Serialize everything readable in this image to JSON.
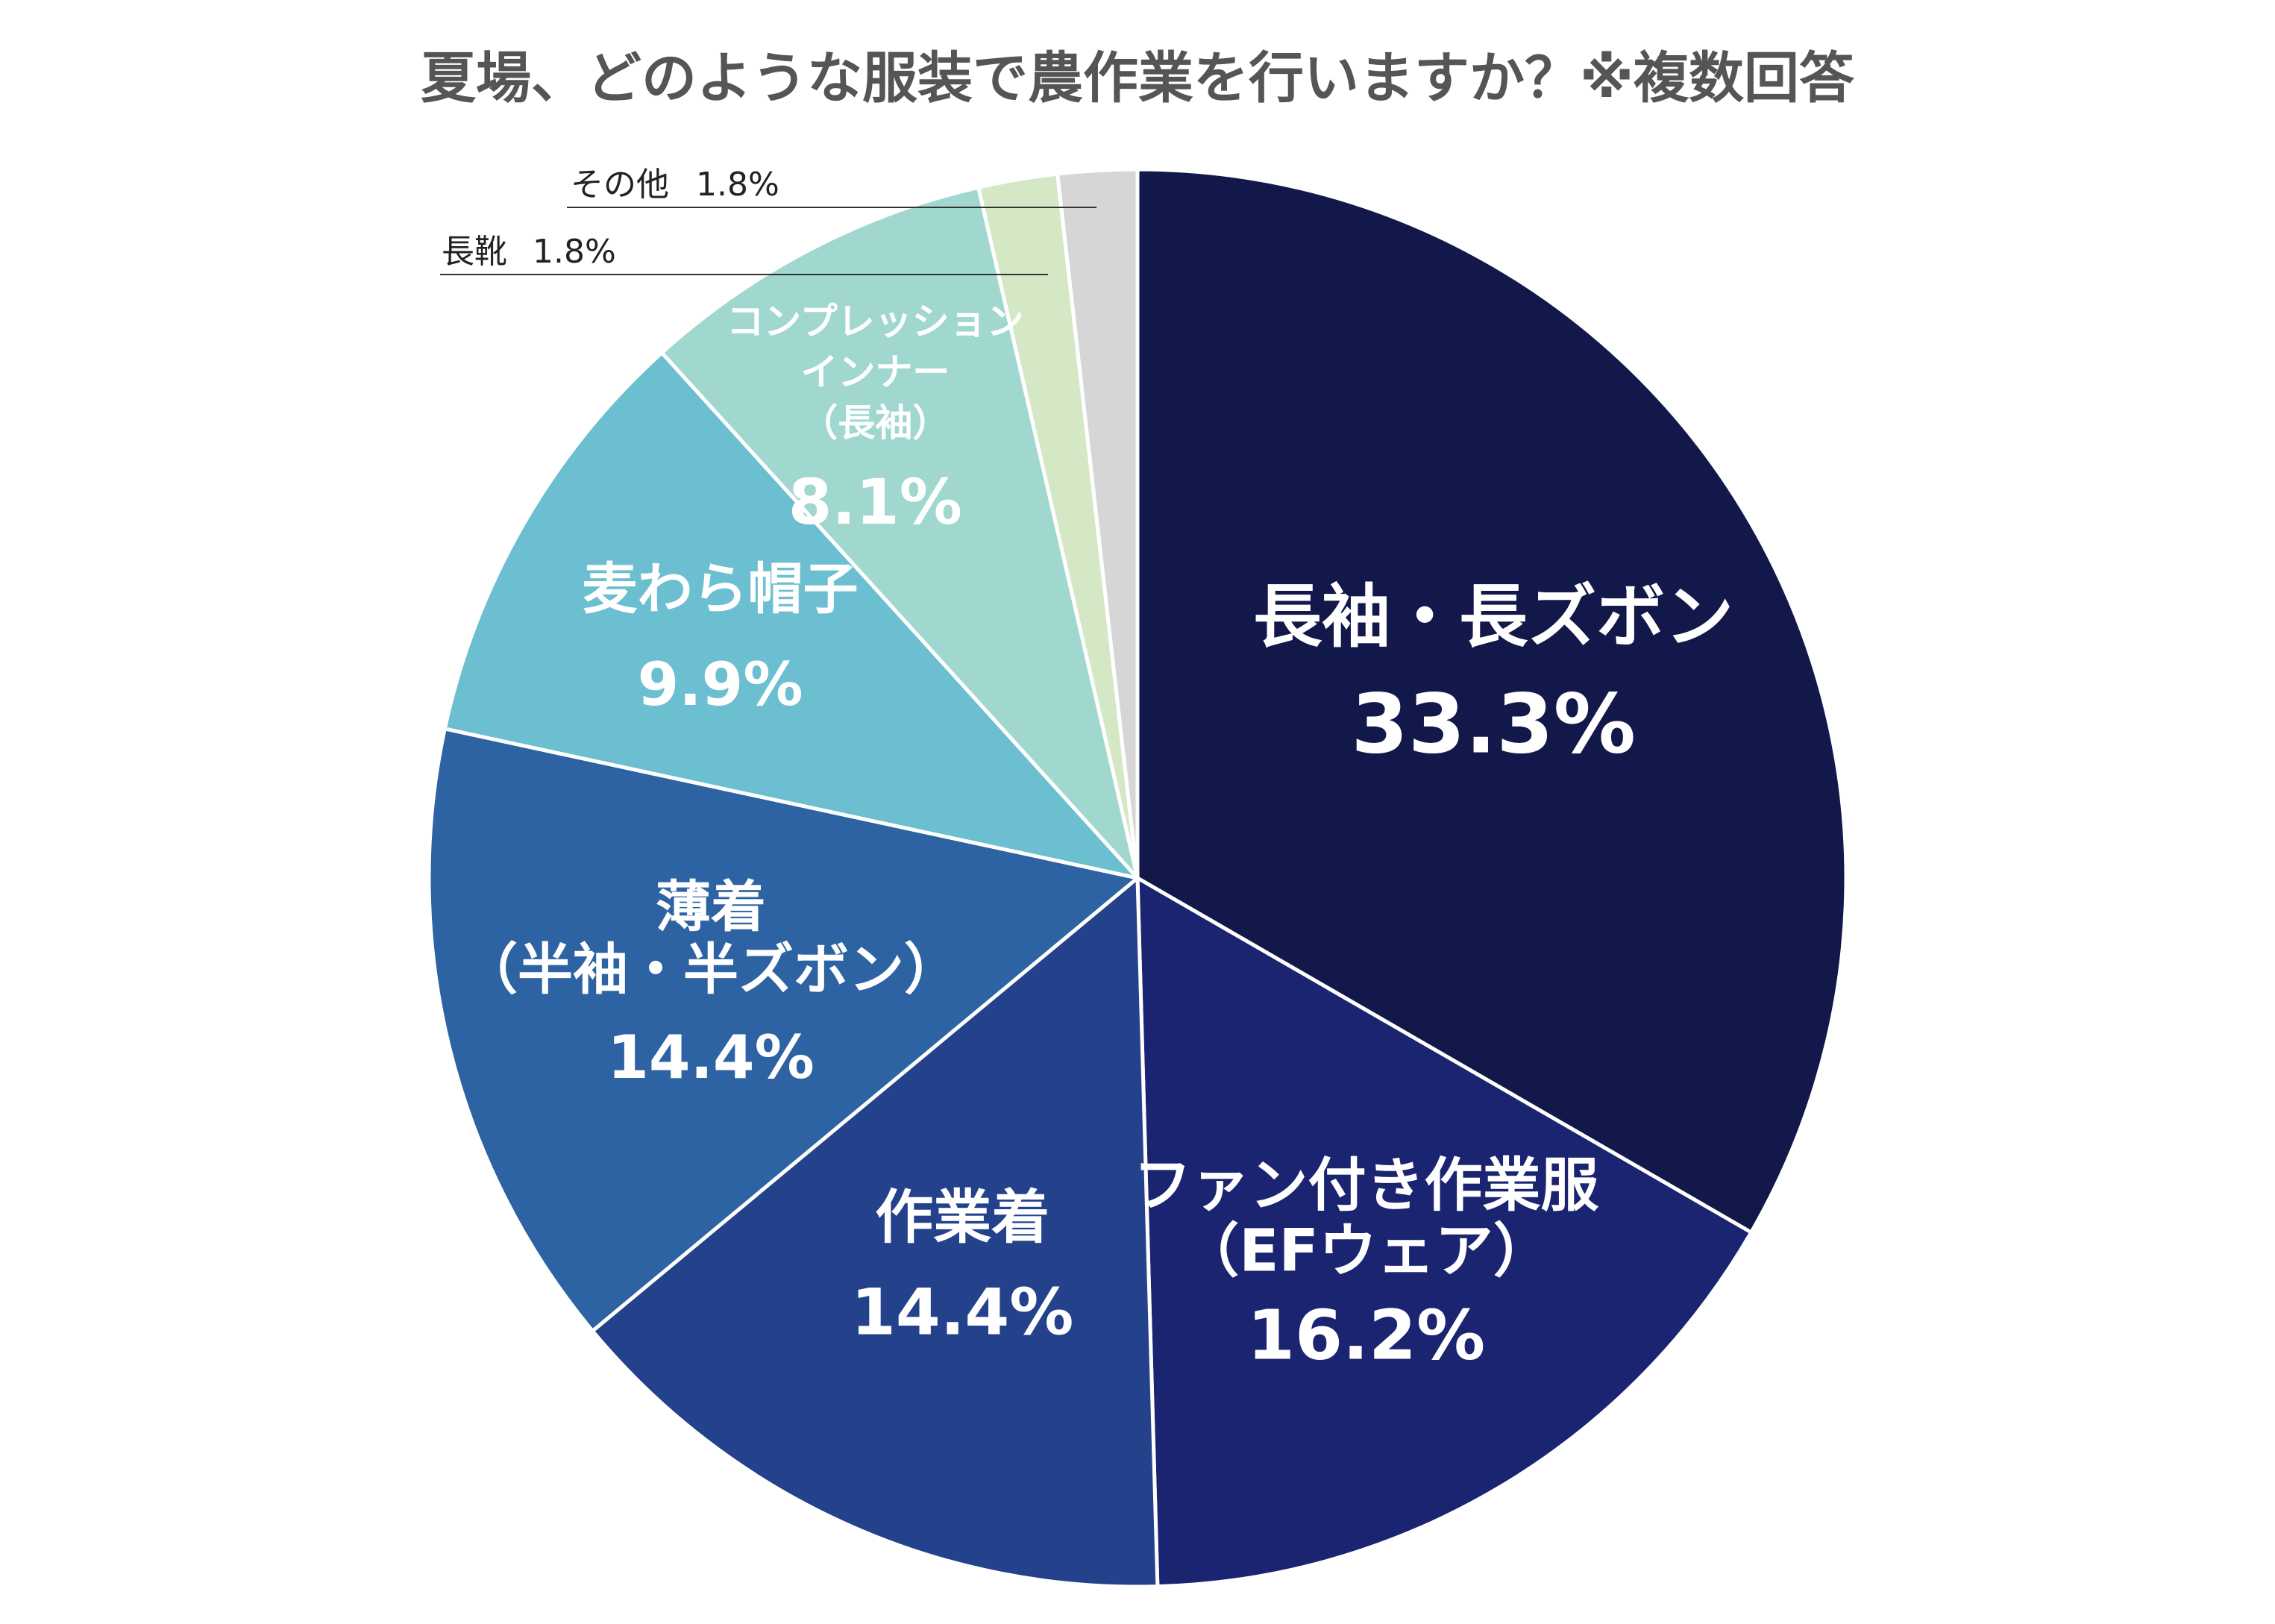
{
  "chart_data": {
    "type": "pie",
    "title": "夏場、どのような服装で農作業を行いますか？※複数回答",
    "slices": [
      {
        "label_lines": [
          "長袖・長ズボン"
        ],
        "value_label": "33.3%",
        "value": 33.3,
        "color": "#13184a",
        "text_color": "#ffffff"
      },
      {
        "label_lines": [
          "ファン付き作業服",
          "（EFウェア）"
        ],
        "value_label": "16.2%",
        "value": 16.2,
        "color": "#1b2470",
        "text_color": "#ffffff"
      },
      {
        "label_lines": [
          "作業着"
        ],
        "value_label": "14.4%",
        "value": 14.4,
        "color": "#24428c",
        "text_color": "#ffffff"
      },
      {
        "label_lines": [
          "薄着",
          "（半袖・半ズボン）"
        ],
        "value_label": "14.4%",
        "value": 14.4,
        "color": "#2d62a3",
        "text_color": "#ffffff"
      },
      {
        "label_lines": [
          "麦わら帽子"
        ],
        "value_label": "9.9%",
        "value": 9.9,
        "color": "#6bbfd1",
        "text_color": "#ffffff"
      },
      {
        "label_lines": [
          "コンプレッション",
          "インナー",
          "（長袖）"
        ],
        "value_label": "8.1%",
        "value": 8.1,
        "color": "#a0d7ce",
        "text_color": "#ffffff"
      },
      {
        "label_lines": [
          "長靴"
        ],
        "value_label": "1.8%",
        "value": 1.8,
        "color": "#d4e8c6",
        "text_color": "#222222"
      },
      {
        "label_lines": [
          "その他"
        ],
        "value_label": "1.8%",
        "value": 1.8,
        "color": "#d6d6d6",
        "text_color": "#222222"
      }
    ]
  }
}
